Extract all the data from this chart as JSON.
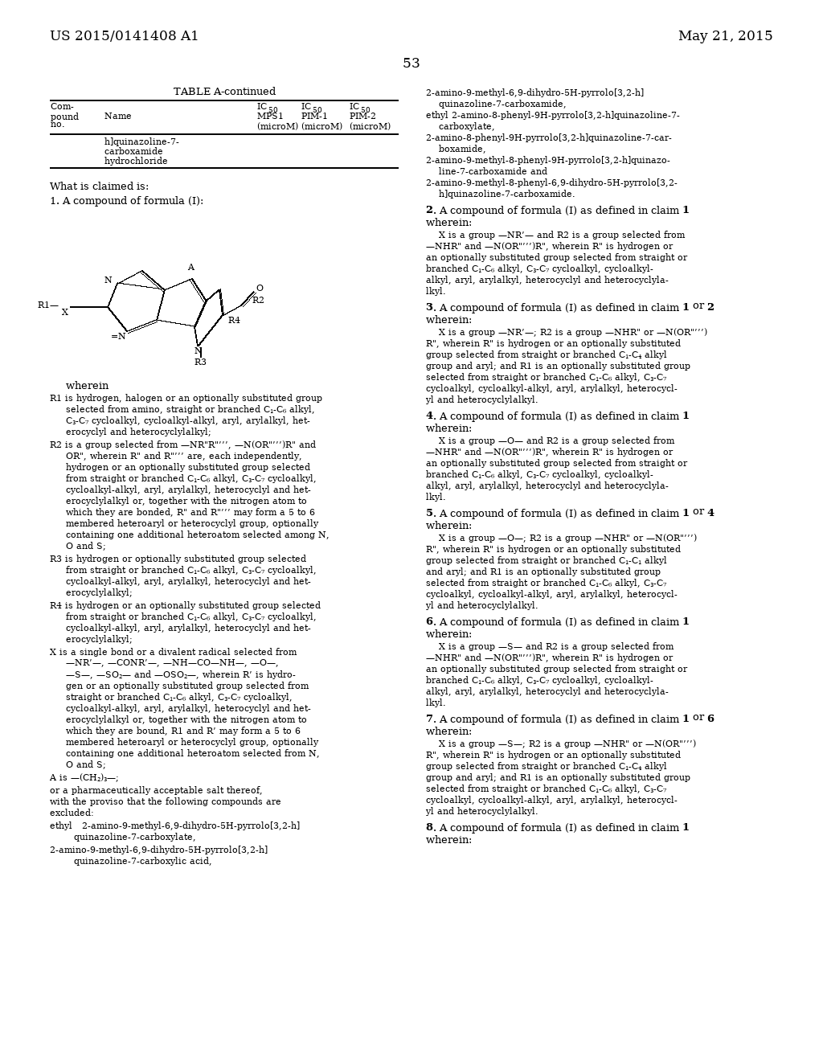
{
  "bg_color": "#ffffff",
  "header_left": "US 2015/0141408 A1",
  "header_right": "May 21, 2015",
  "page_number": "53"
}
